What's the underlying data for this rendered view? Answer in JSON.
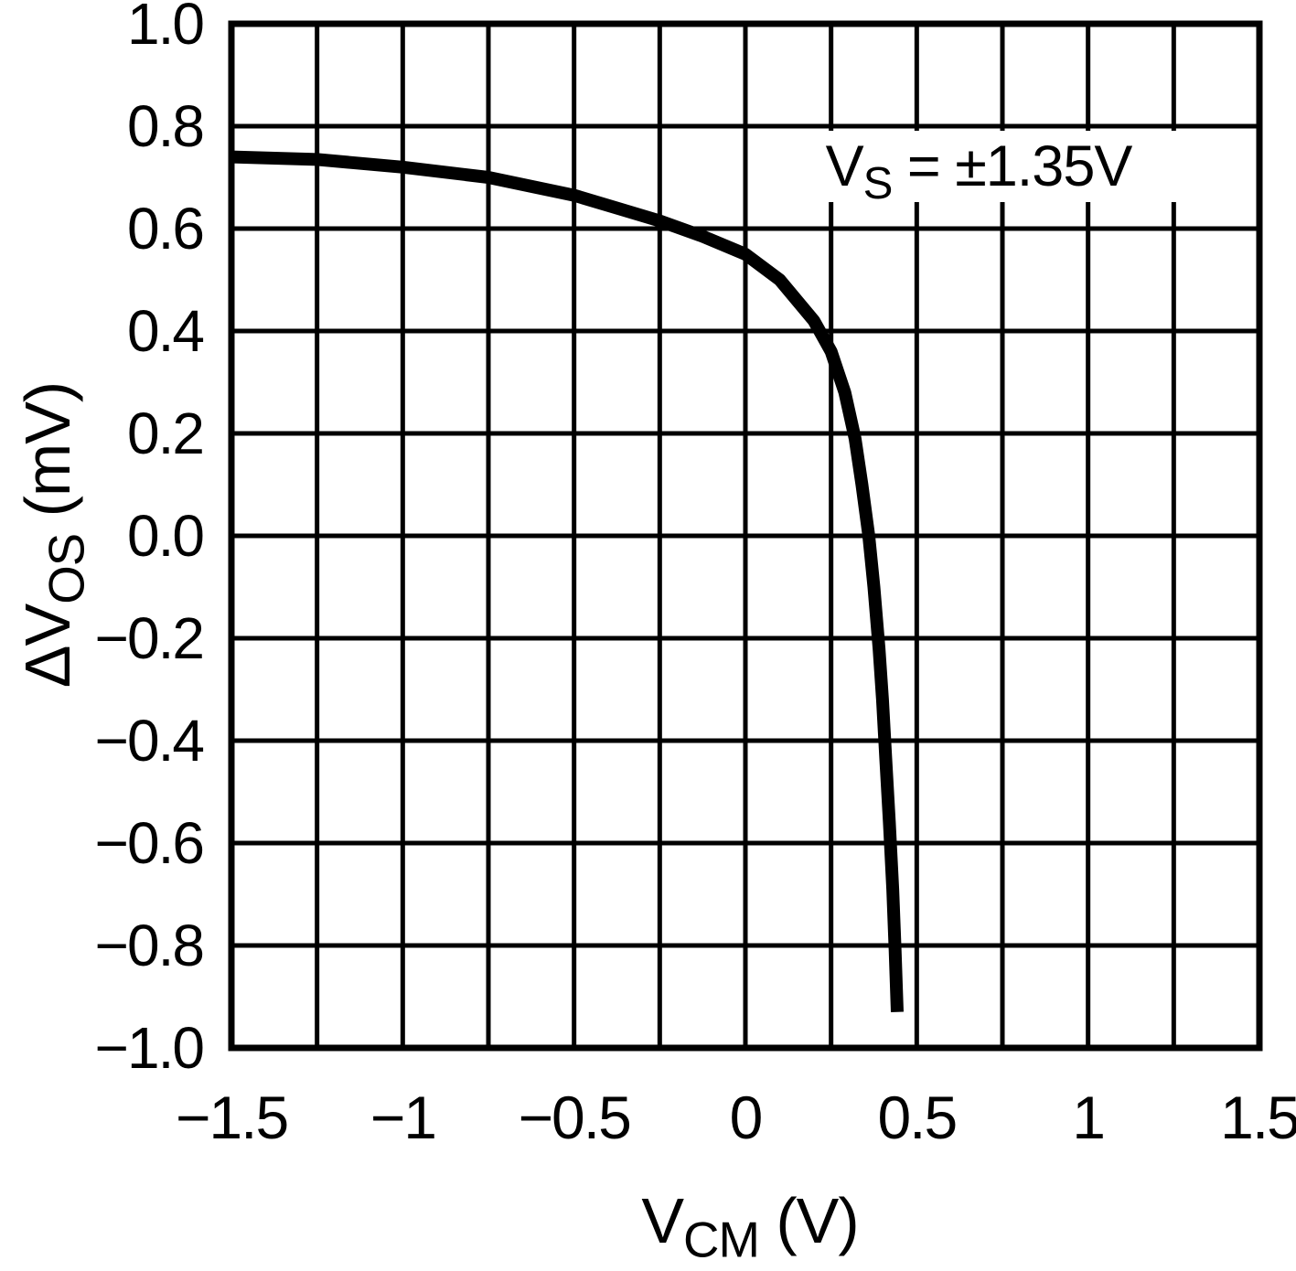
{
  "chart_data": {
    "type": "line",
    "title": "",
    "xlabel": "VCM (V)",
    "ylabel": "ΔVOS (mV)",
    "xlim": [
      -1.5,
      1.5
    ],
    "ylim": [
      -1.0,
      1.0
    ],
    "x_grid_step": 0.25,
    "y_grid_step": 0.2,
    "grid": true,
    "legend_position": "none",
    "annotation_text": "VS = ±1.35V",
    "line_color": "#000000",
    "x_tick_values": [
      -1.5,
      -1,
      -0.5,
      0,
      0.5,
      1,
      1.5
    ],
    "x_tick_labels": [
      "−1.5",
      "−1",
      "−0.5",
      "0",
      "0.5",
      "1",
      "1.5"
    ],
    "y_tick_values": [
      1.0,
      0.8,
      0.6,
      0.4,
      0.2,
      0.0,
      -0.2,
      -0.4,
      -0.6,
      -0.8,
      -1.0
    ],
    "y_tick_labels": [
      "1.0",
      "0.8",
      "0.6",
      "0.4",
      "0.2",
      "0.0",
      "−0.2",
      "−0.4",
      "−0.6",
      "−0.8",
      "−1.0"
    ],
    "series": [
      {
        "name": "delta-vos-vs-vcm",
        "points": [
          [
            -1.5,
            0.74
          ],
          [
            -1.25,
            0.735
          ],
          [
            -1.0,
            0.72
          ],
          [
            -0.75,
            0.7
          ],
          [
            -0.5,
            0.665
          ],
          [
            -0.375,
            0.64
          ],
          [
            -0.25,
            0.615
          ],
          [
            -0.125,
            0.585
          ],
          [
            0.0,
            0.55
          ],
          [
            0.1,
            0.5
          ],
          [
            0.2,
            0.42
          ],
          [
            0.25,
            0.36
          ],
          [
            0.29,
            0.28
          ],
          [
            0.32,
            0.19
          ],
          [
            0.34,
            0.1
          ],
          [
            0.36,
            0.0
          ],
          [
            0.375,
            -0.1
          ],
          [
            0.39,
            -0.22
          ],
          [
            0.4,
            -0.32
          ],
          [
            0.41,
            -0.44
          ],
          [
            0.42,
            -0.56
          ],
          [
            0.43,
            -0.69
          ],
          [
            0.437,
            -0.81
          ],
          [
            0.443,
            -0.93
          ]
        ]
      }
    ]
  },
  "labels": {
    "y_axis": {
      "pre": "ΔV",
      "sub": "OS",
      "post": " (mV)"
    },
    "x_axis": {
      "pre": "V",
      "sub": "CM",
      "post": " (V)"
    },
    "annotation": {
      "pre": "V",
      "sub": "S",
      "post": " = ±1.35V"
    }
  }
}
